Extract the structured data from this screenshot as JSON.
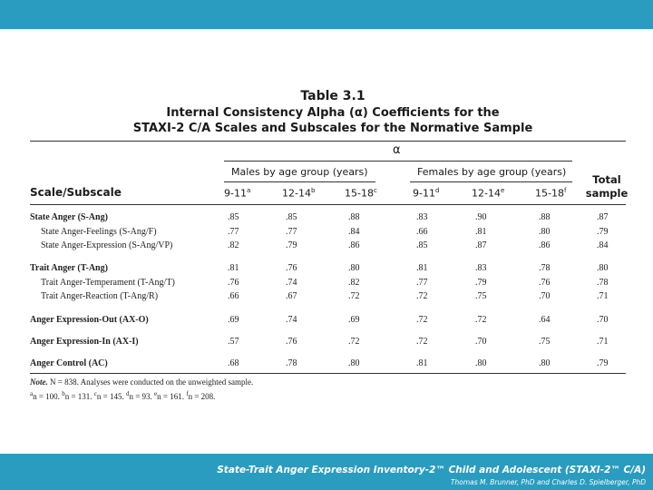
{
  "table": {
    "title_line1": "Table 3.1",
    "title_line2": "Internal Consistency Alpha (α) Coefficients for the",
    "title_line3": "STAXI-2 C/A Scales and Subscales for the Normative Sample",
    "alpha_symbol": "α",
    "males_header": "Males by age group (years)",
    "females_header": "Females by age group (years)",
    "total_line1": "Total",
    "total_line2": "sample",
    "scale_header": "Scale/Subscale",
    "male_cols": [
      {
        "label": "9-11",
        "sup": "a"
      },
      {
        "label": "12-14",
        "sup": "b"
      },
      {
        "label": "15-18",
        "sup": "c"
      }
    ],
    "female_cols": [
      {
        "label": "9-11",
        "sup": "d"
      },
      {
        "label": "12-14",
        "sup": "e"
      },
      {
        "label": "15-18",
        "sup": "f"
      }
    ],
    "rows": [
      {
        "label": "State Anger (S-Ang)",
        "values": [
          ".85",
          ".85",
          ".88",
          ".83",
          ".90",
          ".88",
          ".87"
        ]
      },
      {
        "label": "State Anger-Feelings (S-Ang/F)",
        "values": [
          ".77",
          ".77",
          ".84",
          ".66",
          ".81",
          ".80",
          ".79"
        ]
      },
      {
        "label": "State Anger-Expression (S-Ang/VP)",
        "values": [
          ".82",
          ".79",
          ".86",
          ".85",
          ".87",
          ".86",
          ".84"
        ]
      },
      {
        "label": "Trait Anger (T-Ang)",
        "values": [
          ".81",
          ".76",
          ".80",
          ".81",
          ".83",
          ".78",
          ".80"
        ]
      },
      {
        "label": "Trait Anger-Temperament (T-Ang/T)",
        "values": [
          ".76",
          ".74",
          ".82",
          ".77",
          ".79",
          ".76",
          ".78"
        ]
      },
      {
        "label": "Trait Anger-Reaction (T-Ang/R)",
        "values": [
          ".66",
          ".67",
          ".72",
          ".72",
          ".75",
          ".70",
          ".71"
        ]
      },
      {
        "label": "Anger Expression-Out (AX-O)",
        "values": [
          ".69",
          ".74",
          ".69",
          ".72",
          ".72",
          ".64",
          ".70"
        ]
      },
      {
        "label": "Anger Expression-In (AX-I)",
        "values": [
          ".57",
          ".76",
          ".72",
          ".72",
          ".70",
          ".75",
          ".71"
        ]
      },
      {
        "label": "Anger Control (AC)",
        "values": [
          ".68",
          ".78",
          ".80",
          ".81",
          ".80",
          ".80",
          ".79"
        ]
      }
    ],
    "note_prefix": "Note.",
    "note_text": " N = 838. Analyses were conducted on the unweighted sample.",
    "footnote": [
      {
        "sup": "a",
        "text": "n = 100. "
      },
      {
        "sup": "b",
        "text": "n = 131. "
      },
      {
        "sup": "c",
        "text": "n = 145. "
      },
      {
        "sup": "d",
        "text": "n = 93. "
      },
      {
        "sup": "e",
        "text": "n = 161. "
      },
      {
        "sup": "f",
        "text": "n = 208."
      }
    ]
  },
  "footer": {
    "title": "State-Trait Anger Expression Inventory-2™ Child and Adolescent (STAXI-2™ C/A)",
    "authors": "Thomas M. Brunner, PhD and Charles D. Spielberger, PhD"
  }
}
